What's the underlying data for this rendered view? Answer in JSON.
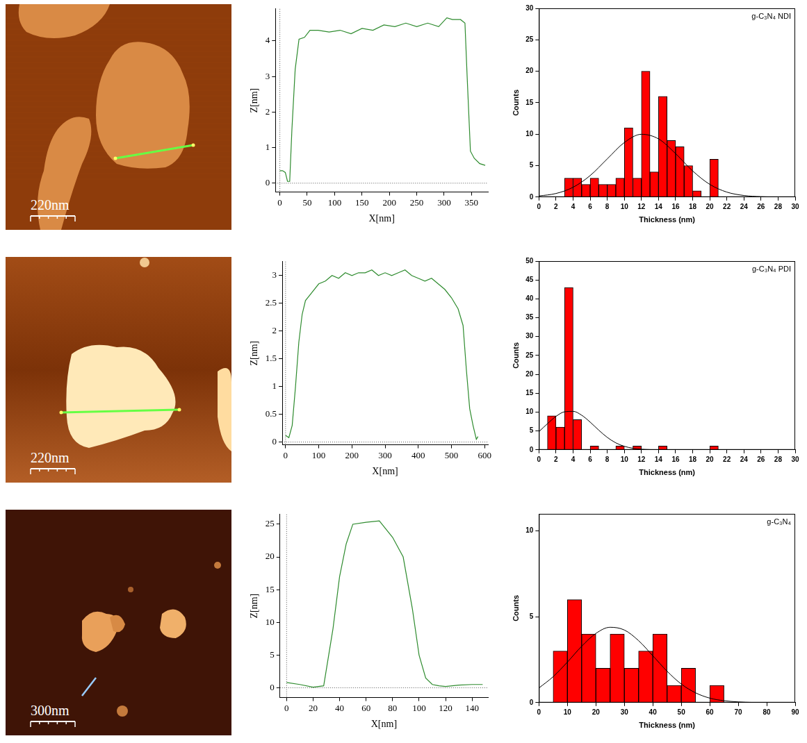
{
  "chart_data": [
    {
      "type": "line",
      "x_label": "X[nm]",
      "y_label": "Z[nm]",
      "color": "#2e8b2e",
      "x": [
        0,
        5,
        10,
        14,
        18,
        22,
        28,
        35,
        45,
        55,
        70,
        90,
        110,
        130,
        150,
        170,
        190,
        210,
        230,
        250,
        270,
        290,
        305,
        315,
        330,
        338,
        342,
        348,
        355,
        365,
        375
      ],
      "values": [
        0.35,
        0.35,
        0.3,
        0.05,
        0.05,
        1.5,
        3.2,
        4.05,
        4.1,
        4.3,
        4.3,
        4.25,
        4.3,
        4.2,
        4.35,
        4.3,
        4.45,
        4.4,
        4.5,
        4.4,
        4.5,
        4.4,
        4.65,
        4.6,
        4.6,
        4.5,
        3.0,
        0.9,
        0.7,
        0.55,
        0.5
      ],
      "xlim": [
        -8,
        380
      ],
      "xticks": [
        0,
        50,
        100,
        150,
        200,
        250,
        300,
        350
      ],
      "ylim": [
        -0.25,
        4.9
      ],
      "yticks": [
        0,
        1,
        2,
        3,
        4
      ],
      "grid": false
    },
    {
      "type": "histogram",
      "annotation": "g-C₃N₄ NDI",
      "x_label": "Thickness (nm)",
      "y_label": "Counts",
      "color": "#ff0000",
      "bins": [
        3,
        4,
        5,
        6,
        7,
        8,
        9,
        10,
        11,
        12,
        13,
        14,
        15,
        16,
        17,
        18,
        19,
        20,
        21
      ],
      "values": [
        3,
        3,
        2,
        3,
        2,
        2,
        3,
        11,
        3,
        20,
        4,
        16,
        9,
        8,
        5,
        1,
        0,
        6
      ],
      "fit": {
        "color": "#000000",
        "x": [
          0,
          2,
          4,
          6,
          8,
          10,
          12,
          14,
          16,
          18,
          20,
          22,
          24,
          26,
          28,
          30
        ],
        "values": [
          0.17,
          0.57,
          1.56,
          3.42,
          6.07,
          8.67,
          9.98,
          9.25,
          6.91,
          4.15,
          2.02,
          0.79,
          0.25,
          0.06,
          0.01,
          0
        ]
      },
      "xlim": [
        0,
        30
      ],
      "xticks": [
        0,
        2,
        4,
        6,
        8,
        10,
        12,
        14,
        16,
        18,
        20,
        22,
        24,
        26,
        28,
        30
      ],
      "ylim": [
        0,
        30
      ],
      "yticks": [
        0,
        5,
        10,
        15,
        20,
        25,
        30
      ],
      "grid": false
    },
    {
      "type": "line",
      "x_label": "X[nm]",
      "y_label": "Z[nm]",
      "color": "#2e8b2e",
      "x": [
        0,
        10,
        20,
        30,
        40,
        50,
        60,
        80,
        100,
        120,
        140,
        160,
        180,
        200,
        220,
        240,
        260,
        280,
        300,
        320,
        340,
        360,
        380,
        400,
        420,
        440,
        460,
        480,
        500,
        520,
        535,
        545,
        555,
        565,
        575,
        580
      ],
      "values": [
        0.12,
        0.08,
        0.3,
        1.0,
        1.8,
        2.3,
        2.55,
        2.7,
        2.85,
        2.9,
        3.0,
        2.95,
        3.05,
        3.0,
        3.05,
        3.05,
        3.1,
        3.0,
        3.05,
        3.0,
        3.05,
        3.1,
        3.0,
        2.95,
        2.9,
        2.95,
        2.85,
        2.75,
        2.6,
        2.4,
        2.1,
        1.3,
        0.6,
        0.3,
        0.05,
        0.1
      ],
      "xlim": [
        -10,
        610
      ],
      "xticks": [
        0,
        100,
        200,
        300,
        400,
        500,
        600
      ],
      "ylim": [
        -0.05,
        3.25
      ],
      "yticks": [
        0,
        0.5,
        1,
        1.5,
        2,
        2.5,
        3
      ],
      "grid": false
    },
    {
      "type": "histogram",
      "annotation": "g-C₃N₄ PDI",
      "x_label": "Thickness (nm)",
      "y_label": "Counts",
      "color": "#ff0000",
      "bins": [
        1,
        2,
        3,
        4,
        5,
        6,
        7,
        8,
        9,
        10,
        11,
        12,
        13,
        14,
        15,
        16,
        17,
        18,
        19,
        20,
        21
      ],
      "values": [
        9,
        6,
        43,
        8,
        0,
        1,
        0,
        0,
        1,
        0,
        1,
        0,
        0,
        1,
        0,
        0,
        0,
        0,
        0,
        1
      ],
      "fit": {
        "color": "#000000",
        "x": [
          0,
          1,
          2,
          3,
          4,
          5,
          6,
          7,
          8,
          9,
          10,
          11,
          12,
          13,
          14,
          15,
          16,
          20,
          25,
          30
        ],
        "values": [
          4.81,
          6.92,
          8.86,
          10.08,
          10.2,
          9.18,
          7.34,
          5.22,
          3.3,
          1.85,
          0.93,
          0.41,
          0.16,
          0.06,
          0.02,
          0.01,
          0,
          0,
          0,
          0
        ]
      },
      "xlim": [
        0,
        30
      ],
      "xticks": [
        0,
        2,
        4,
        6,
        8,
        10,
        12,
        14,
        16,
        18,
        20,
        22,
        24,
        26,
        28,
        30
      ],
      "ylim": [
        0,
        50
      ],
      "yticks": [
        0,
        5,
        10,
        15,
        20,
        25,
        30,
        35,
        40,
        45,
        50
      ],
      "grid": false
    },
    {
      "type": "line",
      "x_label": "X[nm]",
      "y_label": "Z[nm]",
      "color": "#2e8b2e",
      "x": [
        0,
        10,
        20,
        28,
        35,
        40,
        45,
        50,
        60,
        70,
        80,
        88,
        95,
        100,
        105,
        110,
        115,
        120,
        130,
        140,
        148
      ],
      "values": [
        0.8,
        0.5,
        0.1,
        0.3,
        9,
        17,
        22,
        25,
        25.3,
        25.5,
        23,
        20,
        12,
        5,
        1.5,
        0.5,
        0.3,
        0.2,
        0.4,
        0.5,
        0.5
      ],
      "xlim": [
        -5,
        152
      ],
      "xticks": [
        0,
        20,
        40,
        60,
        80,
        100,
        120,
        140
      ],
      "ylim": [
        -1.5,
        26.5
      ],
      "yticks": [
        0,
        5,
        10,
        15,
        20,
        25
      ],
      "grid": false
    },
    {
      "type": "histogram",
      "annotation": "g-C₃N₄",
      "x_label": "Thickness (nm)",
      "y_label": "Counts",
      "color": "#ff0000",
      "bins": [
        5,
        10,
        15,
        20,
        25,
        30,
        35,
        40,
        45,
        50,
        55,
        60,
        65
      ],
      "values": [
        3,
        6,
        4,
        2,
        4,
        2,
        3,
        4,
        1,
        2,
        0,
        1
      ],
      "fit": {
        "color": "#000000",
        "x": [
          0,
          5,
          10,
          15,
          20,
          25,
          30,
          35,
          40,
          45,
          50,
          55,
          60,
          65,
          70,
          75,
          80,
          85,
          90
        ],
        "values": [
          0.85,
          1.51,
          2.36,
          3.28,
          4.03,
          4.39,
          4.23,
          3.61,
          2.73,
          1.83,
          1.08,
          0.57,
          0.26,
          0.11,
          0.04,
          0.01,
          0,
          0,
          0
        ]
      },
      "xlim": [
        0,
        90
      ],
      "xticks": [
        0,
        10,
        20,
        30,
        40,
        50,
        60,
        70,
        80,
        90
      ],
      "ylim": [
        0,
        11
      ],
      "yticks": [
        0,
        5,
        10
      ],
      "grid": false
    }
  ],
  "images": [
    {
      "scale_bar": "220nm"
    },
    {
      "scale_bar": "220nm"
    },
    {
      "scale_bar": "300nm"
    }
  ]
}
